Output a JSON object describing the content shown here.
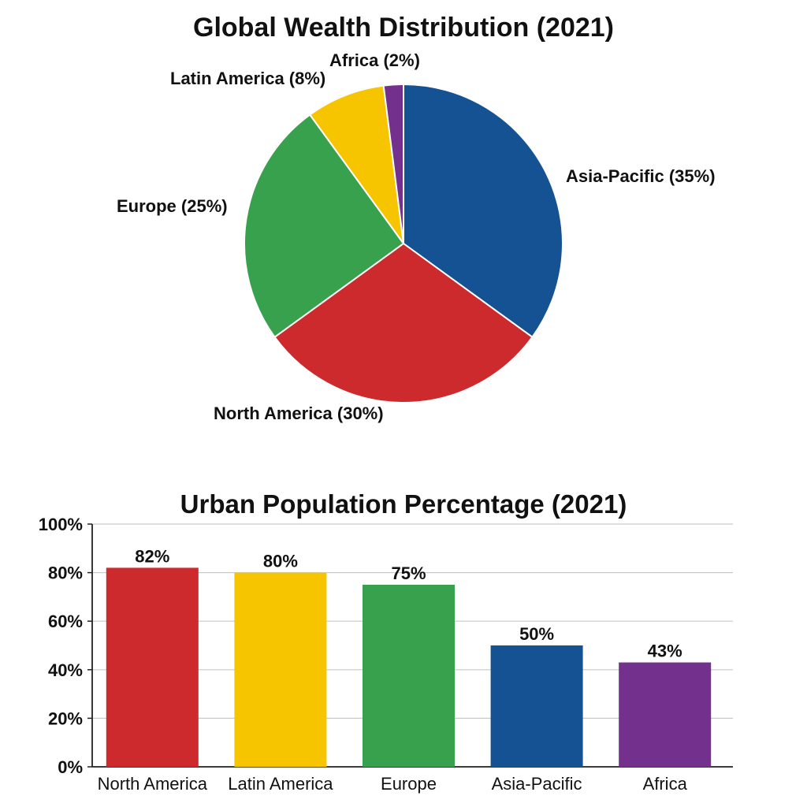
{
  "chart_data": [
    {
      "type": "pie",
      "title": "Global Wealth Distribution (2021)",
      "slices": [
        {
          "label": "Asia-Pacific (35%)",
          "value": 35,
          "color": "#155293"
        },
        {
          "label": "North America (30%)",
          "value": 30,
          "color": "#cc2a2c"
        },
        {
          "label": "Europe (25%)",
          "value": 25,
          "color": "#38a14d"
        },
        {
          "label": "Latin America (8%)",
          "value": 8,
          "color": "#f6c500"
        },
        {
          "label": "Africa (2%)",
          "value": 2,
          "color": "#73308d"
        }
      ]
    },
    {
      "type": "bar",
      "title": "Urban Population Percentage (2021)",
      "categories": [
        "North America",
        "Latin America",
        "Europe",
        "Asia-Pacific",
        "Africa"
      ],
      "values": [
        82,
        80,
        75,
        50,
        43
      ],
      "value_labels": [
        "82%",
        "80%",
        "75%",
        "50%",
        "43%"
      ],
      "colors": [
        "#cc2a2c",
        "#f6c500",
        "#38a14d",
        "#155293",
        "#73308d"
      ],
      "ylim": [
        0,
        100
      ],
      "yticks": [
        0,
        20,
        40,
        60,
        80,
        100
      ],
      "ytick_labels": [
        "0%",
        "20%",
        "40%",
        "60%",
        "80%",
        "100%"
      ],
      "grid": true
    }
  ]
}
